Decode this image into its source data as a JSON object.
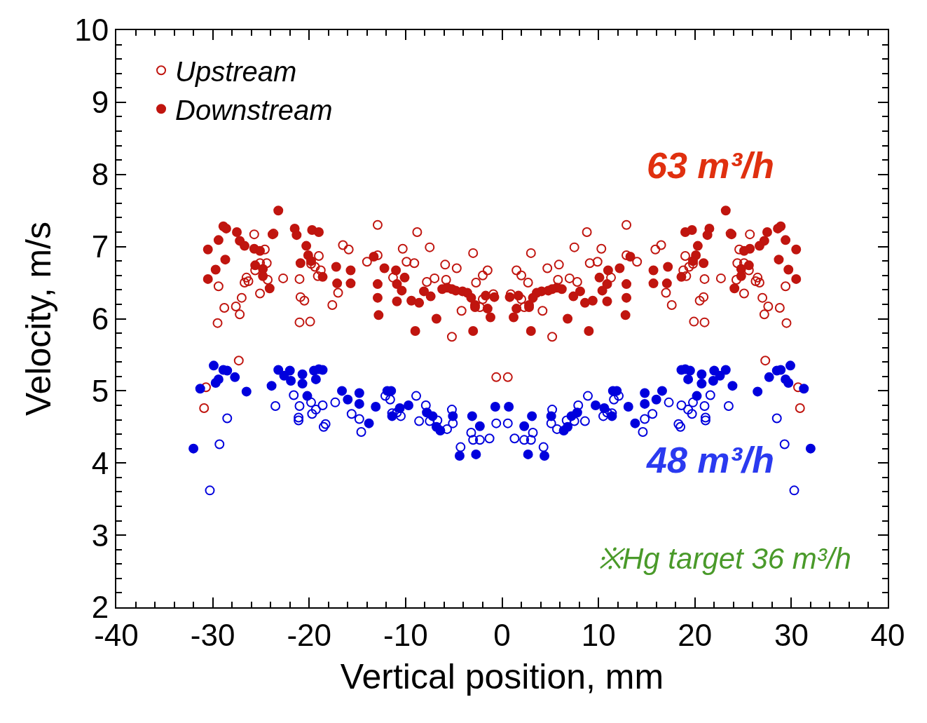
{
  "chart_data": {
    "type": "scatter",
    "xlabel": "Vertical position, mm",
    "ylabel": "Velocity, m/s",
    "xlim": [
      -40,
      40
    ],
    "xticks": [
      -40,
      -30,
      -20,
      -10,
      0,
      10,
      20,
      30,
      40
    ],
    "ylim": [
      2,
      10
    ],
    "yticks": [
      2,
      3,
      4,
      5,
      6,
      7,
      8,
      9,
      10
    ],
    "grid": false,
    "legend": "top left",
    "annotations": [
      "63 m³/h",
      "48 m³/h",
      "※Hg target 36 m³/h"
    ],
    "series": [
      {
        "name": "Upstream",
        "color": "#c0150f",
        "marker": "circle-open",
        "x": [
          -30.7,
          -30.9,
          -27.3,
          -29.4,
          -29.5,
          -28.8,
          -27.6,
          -27.0,
          -27.2,
          -26.7,
          -26.3,
          -26.5,
          -25.7,
          -25.6,
          -25.1,
          -24.6,
          -24.3,
          -24.4,
          -25.1,
          -23.7,
          -22.7,
          -21.0,
          -21.0,
          -20.5,
          -20.9,
          -19.9,
          -19.8,
          -19.4,
          -19.0,
          -19.1,
          -18.8,
          -17.6,
          -16.5,
          -15.9,
          -17.0,
          -14.0,
          -12.9,
          -12.9,
          -11.3,
          -10.3,
          -9.9,
          -9.1,
          -8.8,
          -7.5,
          -7.8,
          -7.0,
          -5.9,
          -5.8,
          -5.2,
          -4.7,
          -4.2,
          -3.0,
          -2.0,
          -1.5,
          -2.3,
          -2.0,
          -2.7,
          -0.9,
          -0.6,
          30.7,
          30.9,
          27.3,
          29.4,
          29.5,
          28.8,
          27.6,
          27.0,
          27.2,
          26.7,
          26.3,
          26.5,
          25.7,
          25.6,
          25.1,
          24.6,
          24.3,
          24.4,
          25.1,
          23.7,
          22.7,
          21.0,
          21.0,
          20.5,
          20.9,
          19.9,
          19.8,
          19.4,
          19.0,
          19.1,
          18.8,
          17.6,
          16.5,
          15.9,
          17.0,
          14.0,
          12.9,
          12.9,
          11.3,
          10.3,
          9.9,
          9.1,
          8.8,
          7.5,
          7.8,
          7.0,
          5.9,
          5.8,
          5.2,
          4.7,
          4.2,
          3.0,
          2.0,
          1.5,
          2.3,
          2.0,
          2.7,
          0.9,
          0.6
        ],
        "values": [
          5.05,
          4.76,
          5.42,
          6.45,
          5.94,
          6.15,
          6.17,
          6.29,
          6.06,
          6.5,
          6.52,
          6.57,
          7.17,
          6.67,
          6.77,
          6.96,
          6.54,
          6.77,
          6.35,
          7.18,
          6.56,
          6.55,
          5.95,
          6.25,
          6.3,
          5.96,
          6.76,
          6.72,
          6.87,
          6.59,
          6.67,
          6.19,
          7.02,
          6.96,
          6.36,
          6.79,
          7.3,
          6.88,
          6.57,
          6.97,
          6.79,
          6.77,
          7.2,
          6.99,
          6.51,
          6.56,
          6.75,
          6.54,
          5.75,
          6.7,
          6.11,
          6.91,
          6.6,
          6.67,
          6.16,
          6.27,
          6.5,
          6.34,
          5.19,
          5.05,
          4.76,
          5.42,
          6.45,
          5.94,
          6.15,
          6.17,
          6.29,
          6.06,
          6.5,
          6.52,
          6.57,
          7.17,
          6.67,
          6.77,
          6.96,
          6.54,
          6.77,
          6.35,
          7.18,
          6.56,
          6.55,
          5.95,
          6.25,
          6.3,
          5.96,
          6.76,
          6.72,
          6.87,
          6.59,
          6.67,
          6.19,
          7.02,
          6.96,
          6.36,
          6.79,
          7.3,
          6.88,
          6.57,
          6.97,
          6.79,
          6.77,
          7.2,
          6.99,
          6.51,
          6.56,
          6.75,
          6.54,
          5.75,
          6.7,
          6.11,
          6.91,
          6.6,
          6.67,
          6.16,
          6.27,
          6.5,
          6.34,
          5.19
        ]
      },
      {
        "name": "Downstream",
        "color": "#c0150f",
        "marker": "circle",
        "x": [
          -30.5,
          -30.5,
          -29.7,
          -29.4,
          -28.9,
          -28.6,
          -28.7,
          -27.5,
          -27.2,
          -26.7,
          -25.7,
          -25.1,
          -25.6,
          -24.8,
          -24.8,
          -24.1,
          -23.8,
          -23.2,
          -21.5,
          -21.3,
          -20.9,
          -20.3,
          -20.1,
          -19.7,
          -19.0,
          -19.8,
          -18.6,
          -17.2,
          -17.1,
          -15.7,
          -15.7,
          -13.3,
          -12.9,
          -12.9,
          -12.8,
          -12.2,
          -11.0,
          -10.9,
          -10.4,
          -10.9,
          -10.1,
          -9.4,
          -9.0,
          -8.6,
          -8.1,
          -7.4,
          -6.8,
          -6.2,
          -5.7,
          -5.2,
          -4.8,
          -4.1,
          -3.6,
          -3.2,
          -3.0,
          -2.8,
          -2.8,
          -1.7,
          -1.5,
          -1.2,
          -0.8,
          30.5,
          30.5,
          29.7,
          29.4,
          28.9,
          28.6,
          28.7,
          27.5,
          27.2,
          26.7,
          25.7,
          25.1,
          25.6,
          24.8,
          24.8,
          24.1,
          23.8,
          23.2,
          21.5,
          21.3,
          20.9,
          20.3,
          20.1,
          19.7,
          19.0,
          19.8,
          18.6,
          17.2,
          17.1,
          15.7,
          15.7,
          13.3,
          12.9,
          12.9,
          12.8,
          12.2,
          11.0,
          10.9,
          10.4,
          10.9,
          10.1,
          9.4,
          9.0,
          8.6,
          8.1,
          7.4,
          6.8,
          6.2,
          5.7,
          5.2,
          4.8,
          4.1,
          3.6,
          3.2,
          3.0,
          2.8,
          2.8,
          1.7,
          1.5,
          1.2,
          0.8
        ],
        "values": [
          6.96,
          6.55,
          6.68,
          7.09,
          7.28,
          7.25,
          6.82,
          7.2,
          7.08,
          7.01,
          6.97,
          6.94,
          6.74,
          6.69,
          6.59,
          6.42,
          7.17,
          7.5,
          7.25,
          7.16,
          6.77,
          7.01,
          6.88,
          7.23,
          7.2,
          6.8,
          6.58,
          6.72,
          6.49,
          6.67,
          6.49,
          6.86,
          6.48,
          6.29,
          6.05,
          6.7,
          6.67,
          6.48,
          6.39,
          6.24,
          6.57,
          6.25,
          5.83,
          6.22,
          6.38,
          6.31,
          6.0,
          6.41,
          6.43,
          6.41,
          6.39,
          6.38,
          6.36,
          6.29,
          5.83,
          6.19,
          6.16,
          6.32,
          6.14,
          6.02,
          6.3,
          6.96,
          6.55,
          6.68,
          7.09,
          7.28,
          7.25,
          6.82,
          7.2,
          7.08,
          7.01,
          6.97,
          6.94,
          6.74,
          6.69,
          6.59,
          6.42,
          7.17,
          7.5,
          7.25,
          7.16,
          6.77,
          7.01,
          6.88,
          7.23,
          7.2,
          6.8,
          6.58,
          6.72,
          6.49,
          6.67,
          6.49,
          6.86,
          6.48,
          6.29,
          6.05,
          6.7,
          6.67,
          6.48,
          6.39,
          6.24,
          6.57,
          6.25,
          5.83,
          6.22,
          6.38,
          6.31,
          6.0,
          6.41,
          6.43,
          6.41,
          6.39,
          6.38,
          6.36,
          6.29,
          5.83,
          6.19,
          6.16,
          6.32,
          6.14,
          6.02,
          6.3
        ]
      },
      {
        "color": "#0000dd",
        "marker": "circle-open",
        "x": [
          -30.3,
          -29.3,
          -28.5,
          -23.5,
          -21.6,
          -21.0,
          -21.1,
          -21.1,
          -19.8,
          -19.7,
          -19.3,
          -18.6,
          -18.5,
          -18.3,
          -17.3,
          -15.6,
          -14.6,
          -14.8,
          -12.1,
          -11.6,
          -11.4,
          -10.9,
          -10.5,
          -8.9,
          -8.6,
          -7.9,
          -7.5,
          -6.7,
          -5.7,
          -5.2,
          -5.1,
          -4.3,
          -3.2,
          -3.0,
          -2.3,
          -1.3,
          -0.6,
          30.3,
          29.3,
          28.5,
          23.5,
          21.6,
          21.0,
          21.1,
          21.1,
          19.8,
          19.7,
          19.3,
          18.6,
          18.5,
          18.3,
          17.3,
          15.6,
          14.6,
          14.8,
          12.1,
          11.6,
          11.4,
          10.9,
          10.5,
          8.9,
          8.6,
          7.9,
          7.5,
          6.7,
          5.7,
          5.2,
          5.1,
          4.3,
          3.2,
          3.0,
          2.3,
          1.3,
          0.6
        ],
        "values": [
          3.62,
          4.26,
          4.62,
          4.79,
          4.94,
          4.79,
          4.63,
          4.59,
          4.84,
          4.68,
          4.74,
          4.8,
          4.5,
          4.54,
          4.84,
          4.68,
          4.43,
          4.61,
          4.93,
          4.88,
          4.69,
          4.7,
          4.65,
          4.93,
          4.58,
          4.8,
          4.58,
          4.59,
          4.47,
          4.74,
          4.55,
          4.22,
          4.42,
          4.32,
          4.32,
          4.34,
          4.55,
          3.62,
          4.26,
          4.62,
          4.79,
          4.94,
          4.79,
          4.63,
          4.59,
          4.84,
          4.68,
          4.74,
          4.8,
          4.5,
          4.54,
          4.84,
          4.68,
          4.43,
          4.61,
          4.93,
          4.88,
          4.69,
          4.7,
          4.65,
          4.93,
          4.58,
          4.8,
          4.58,
          4.59,
          4.47,
          4.74,
          4.55,
          4.22,
          4.42,
          4.32,
          4.32,
          4.34,
          4.55
        ]
      },
      {
        "color": "#0000dd",
        "marker": "circle",
        "x": [
          -32.0,
          -31.3,
          -29.9,
          -29.7,
          -29.4,
          -28.9,
          -28.5,
          -27.7,
          -26.5,
          -23.9,
          -23.2,
          -22.0,
          -22.6,
          -21.9,
          -20.7,
          -20.7,
          -20.2,
          -19.5,
          -19.3,
          -19.0,
          -18.6,
          -16.6,
          -16.0,
          -14.8,
          -14.8,
          -13.8,
          -13.1,
          -11.9,
          -11.5,
          -11.4,
          -10.6,
          -9.7,
          -7.8,
          -7.2,
          -6.8,
          -6.4,
          -5.1,
          -4.4,
          -3.1,
          -2.7,
          -2.3,
          -0.7,
          32.0,
          31.3,
          29.9,
          29.7,
          29.4,
          28.9,
          28.5,
          27.7,
          26.5,
          23.9,
          23.2,
          22.0,
          22.6,
          21.9,
          20.7,
          20.7,
          20.2,
          19.5,
          19.3,
          19.0,
          18.6,
          16.6,
          16.0,
          14.8,
          14.8,
          13.8,
          13.1,
          11.9,
          11.5,
          11.4,
          10.6,
          9.7,
          7.8,
          7.2,
          6.8,
          6.4,
          5.1,
          4.4,
          3.1,
          2.7,
          2.3,
          0.7
        ],
        "values": [
          4.2,
          5.03,
          5.35,
          5.11,
          5.16,
          5.29,
          5.28,
          5.19,
          4.99,
          5.07,
          5.29,
          5.28,
          5.21,
          5.14,
          5.1,
          5.23,
          4.93,
          5.28,
          5.16,
          5.3,
          5.29,
          5.0,
          4.88,
          4.82,
          4.97,
          4.55,
          4.78,
          5.0,
          5.0,
          4.65,
          4.76,
          4.8,
          4.7,
          4.65,
          4.5,
          4.45,
          4.65,
          4.1,
          4.65,
          4.12,
          4.51,
          4.78,
          4.2,
          5.03,
          5.35,
          5.11,
          5.16,
          5.29,
          5.28,
          5.19,
          4.99,
          5.07,
          5.29,
          5.28,
          5.21,
          5.14,
          5.1,
          5.23,
          4.93,
          5.28,
          5.16,
          5.3,
          5.29,
          5.0,
          4.88,
          4.82,
          4.97,
          4.55,
          4.78,
          5.0,
          5.0,
          4.65,
          4.76,
          4.8,
          4.7,
          4.65,
          4.5,
          4.45,
          4.65,
          4.1,
          4.65,
          4.12,
          4.51,
          4.78
        ]
      }
    ]
  }
}
